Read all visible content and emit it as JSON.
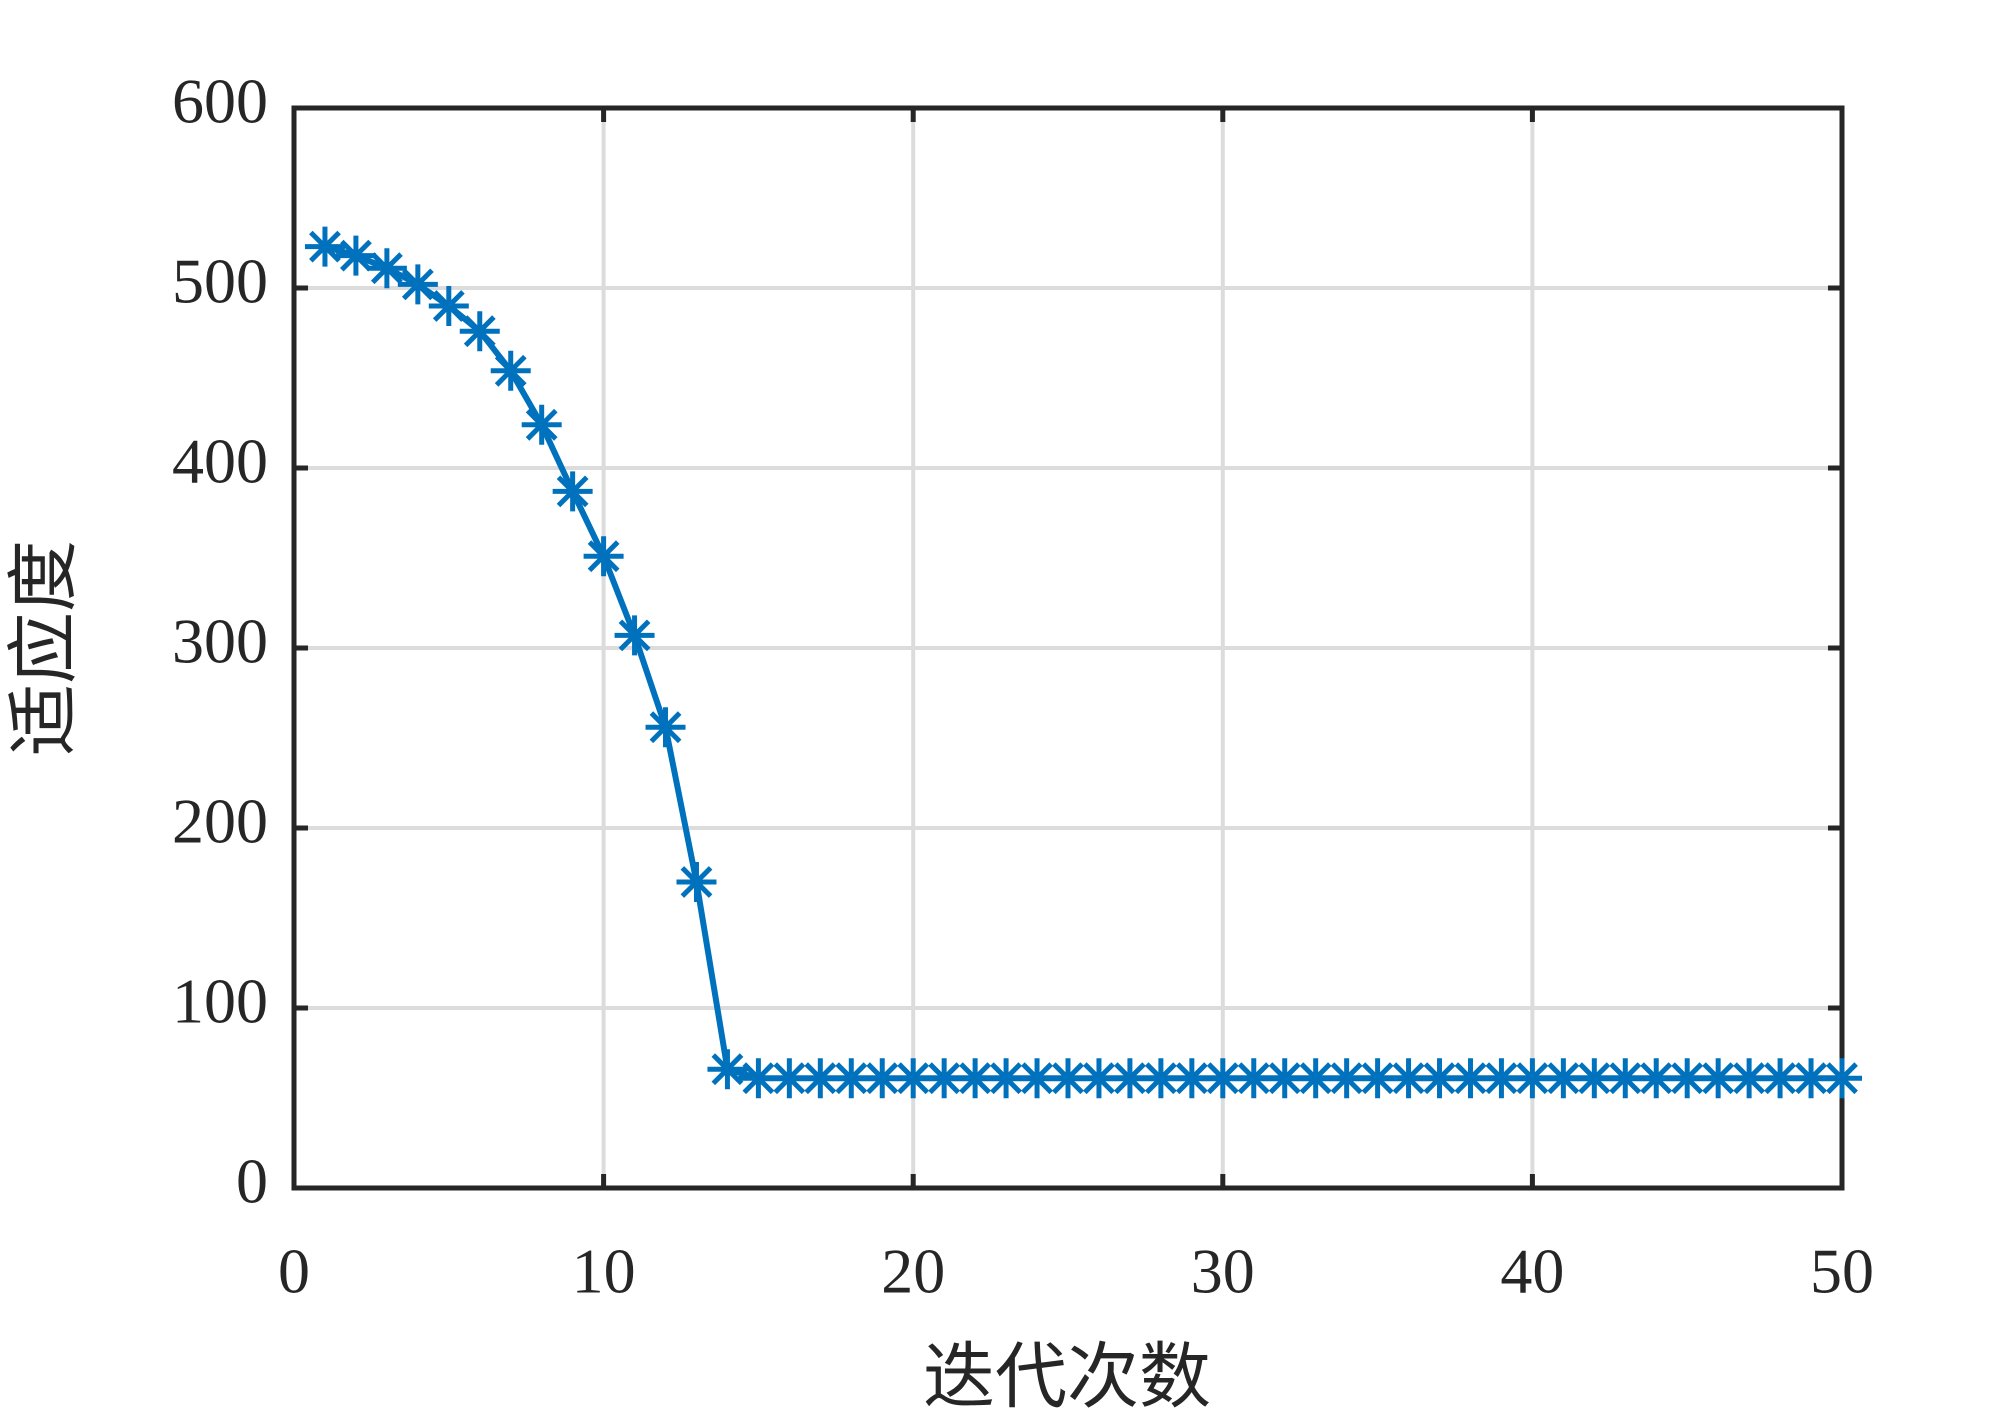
{
  "chart_data": {
    "type": "line",
    "xlabel": "迭代次数",
    "ylabel": "适应度",
    "x": [
      1,
      2,
      3,
      4,
      5,
      6,
      7,
      8,
      9,
      10,
      11,
      12,
      13,
      14,
      15,
      16,
      17,
      18,
      19,
      20,
      21,
      22,
      23,
      24,
      25,
      26,
      27,
      28,
      29,
      30,
      31,
      32,
      33,
      34,
      35,
      36,
      37,
      38,
      39,
      40,
      41,
      42,
      43,
      44,
      45,
      46,
      47,
      48,
      49,
      50
    ],
    "series": [
      {
        "color": "#0072bd",
        "marker": "asterisk",
        "values": [
          523,
          518,
          511,
          502,
          490,
          476,
          454,
          424,
          387,
          351,
          307,
          256,
          170,
          66,
          61,
          61,
          61,
          61,
          61,
          61,
          61,
          61,
          61,
          61,
          61,
          61,
          61,
          61,
          61,
          61,
          61,
          61,
          61,
          61,
          61,
          61,
          61,
          61,
          61,
          61,
          61,
          61,
          61,
          61,
          61,
          61,
          61,
          61,
          61,
          61
        ]
      }
    ],
    "xlim": [
      0,
      50
    ],
    "xticks": [
      0,
      10,
      20,
      30,
      40,
      50
    ],
    "ylim": [
      0,
      600
    ],
    "yticks": [
      0,
      100,
      200,
      300,
      400,
      500,
      600
    ],
    "grid": true
  }
}
